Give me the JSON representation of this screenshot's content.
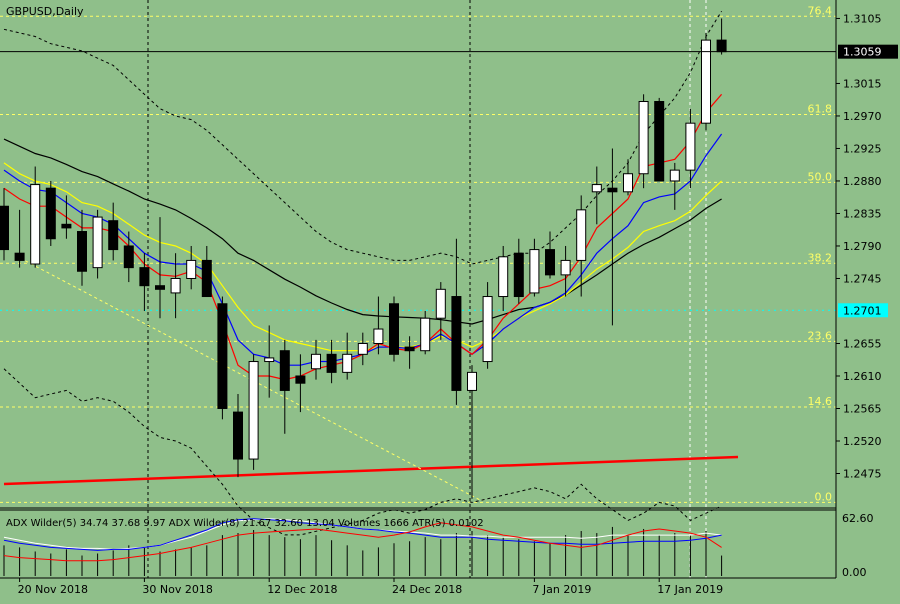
{
  "window": {
    "title": "GBPUSD,Daily"
  },
  "colors": {
    "background": "#8fbf8a",
    "bull_candle": "#ffffff",
    "bear_candle": "#000000",
    "ma_black": "#000000",
    "ma_red": "#ff0000",
    "ma_blue": "#0000ff",
    "ma_yellow": "#ffff00",
    "fib_line": "#ffff66",
    "current_price_bg": "#000000",
    "cyan_marker": "#00ffff",
    "trend_red": "#ff0000"
  },
  "price_axis": {
    "ticks": [
      "1.3105",
      "1.3015",
      "1.2970",
      "1.2925",
      "1.2880",
      "1.2835",
      "1.2790",
      "1.2745",
      "1.2655",
      "1.2610",
      "1.2565",
      "1.2520",
      "1.2475"
    ],
    "tick_values": [
      1.3105,
      1.3015,
      1.297,
      1.2925,
      1.288,
      1.2835,
      1.279,
      1.2745,
      1.2655,
      1.261,
      1.2565,
      1.252,
      1.2475
    ],
    "current_price": "1.3059",
    "current_value": 1.3059,
    "cyan_label": "1.2701",
    "cyan_value": 1.2701
  },
  "fib_levels": [
    {
      "label": "76.4",
      "value": 1.3108
    },
    {
      "label": "61.8",
      "value": 1.2972
    },
    {
      "label": "50.0",
      "value": 1.2878
    },
    {
      "label": "38.2",
      "value": 1.2766
    },
    {
      "label": "23.6",
      "value": 1.2658
    },
    {
      "label": "14.6",
      "value": 1.2567
    },
    {
      "label": "0.0",
      "value": 1.2435
    }
  ],
  "time_axis": {
    "labels": [
      "20 Nov 2018",
      "30 Nov 2018",
      "12 Dec 2018",
      "24 Dec 2018",
      "7 Jan 2019",
      "17 Jan 2019"
    ],
    "label_bars": [
      1,
      9,
      17,
      25,
      34,
      42
    ]
  },
  "indicator": {
    "header": "ADX Wilder(5) 34.74 37.68 9.97 ADX Wilder(8) 21.67 32.60 13.04 Volumes 1666 ATR(5) 0.0102",
    "scale_top": "62.60",
    "scale_bottom": "0.00"
  },
  "chart_data": {
    "type": "candlestick",
    "symbol": "GBPUSD",
    "timeframe": "Daily",
    "candles": [
      {
        "o": 1.2845,
        "h": 1.287,
        "l": 1.277,
        "c": 1.2785
      },
      {
        "o": 1.278,
        "h": 1.284,
        "l": 1.276,
        "c": 1.277
      },
      {
        "o": 1.2765,
        "h": 1.29,
        "l": 1.276,
        "c": 1.2875
      },
      {
        "o": 1.287,
        "h": 1.288,
        "l": 1.279,
        "c": 1.28
      },
      {
        "o": 1.282,
        "h": 1.286,
        "l": 1.28,
        "c": 1.2815
      },
      {
        "o": 1.281,
        "h": 1.284,
        "l": 1.2735,
        "c": 1.2755
      },
      {
        "o": 1.276,
        "h": 1.284,
        "l": 1.2745,
        "c": 1.283
      },
      {
        "o": 1.2825,
        "h": 1.285,
        "l": 1.277,
        "c": 1.2785
      },
      {
        "o": 1.279,
        "h": 1.281,
        "l": 1.274,
        "c": 1.276
      },
      {
        "o": 1.276,
        "h": 1.278,
        "l": 1.27,
        "c": 1.2735
      },
      {
        "o": 1.2735,
        "h": 1.283,
        "l": 1.269,
        "c": 1.273
      },
      {
        "o": 1.2725,
        "h": 1.278,
        "l": 1.269,
        "c": 1.2745
      },
      {
        "o": 1.2745,
        "h": 1.279,
        "l": 1.273,
        "c": 1.277
      },
      {
        "o": 1.277,
        "h": 1.279,
        "l": 1.272,
        "c": 1.272
      },
      {
        "o": 1.271,
        "h": 1.272,
        "l": 1.255,
        "c": 1.2565
      },
      {
        "o": 1.256,
        "h": 1.2585,
        "l": 1.247,
        "c": 1.2495
      },
      {
        "o": 1.2495,
        "h": 1.264,
        "l": 1.248,
        "c": 1.263
      },
      {
        "o": 1.263,
        "h": 1.268,
        "l": 1.258,
        "c": 1.2635
      },
      {
        "o": 1.2645,
        "h": 1.266,
        "l": 1.253,
        "c": 1.259
      },
      {
        "o": 1.261,
        "h": 1.264,
        "l": 1.256,
        "c": 1.26
      },
      {
        "o": 1.262,
        "h": 1.266,
        "l": 1.2605,
        "c": 1.264
      },
      {
        "o": 1.264,
        "h": 1.266,
        "l": 1.26,
        "c": 1.2615
      },
      {
        "o": 1.2615,
        "h": 1.267,
        "l": 1.2605,
        "c": 1.264
      },
      {
        "o": 1.264,
        "h": 1.267,
        "l": 1.2625,
        "c": 1.2655
      },
      {
        "o": 1.2655,
        "h": 1.272,
        "l": 1.264,
        "c": 1.2675
      },
      {
        "o": 1.271,
        "h": 1.272,
        "l": 1.263,
        "c": 1.264
      },
      {
        "o": 1.265,
        "h": 1.2665,
        "l": 1.262,
        "c": 1.2645
      },
      {
        "o": 1.2645,
        "h": 1.27,
        "l": 1.264,
        "c": 1.269
      },
      {
        "o": 1.269,
        "h": 1.274,
        "l": 1.266,
        "c": 1.273
      },
      {
        "o": 1.272,
        "h": 1.28,
        "l": 1.257,
        "c": 1.259
      },
      {
        "o": 1.259,
        "h": 1.2625,
        "l": 1.244,
        "c": 1.2615
      },
      {
        "o": 1.263,
        "h": 1.274,
        "l": 1.262,
        "c": 1.272
      },
      {
        "o": 1.272,
        "h": 1.279,
        "l": 1.27,
        "c": 1.2775
      },
      {
        "o": 1.278,
        "h": 1.28,
        "l": 1.271,
        "c": 1.272
      },
      {
        "o": 1.2725,
        "h": 1.28,
        "l": 1.272,
        "c": 1.2785
      },
      {
        "o": 1.2785,
        "h": 1.281,
        "l": 1.2745,
        "c": 1.275
      },
      {
        "o": 1.275,
        "h": 1.279,
        "l": 1.272,
        "c": 1.277
      },
      {
        "o": 1.277,
        "h": 1.286,
        "l": 1.272,
        "c": 1.284
      },
      {
        "o": 1.2865,
        "h": 1.29,
        "l": 1.282,
        "c": 1.2875
      },
      {
        "o": 1.287,
        "h": 1.2925,
        "l": 1.268,
        "c": 1.2865
      },
      {
        "o": 1.2865,
        "h": 1.291,
        "l": 1.286,
        "c": 1.289
      },
      {
        "o": 1.289,
        "h": 1.3,
        "l": 1.287,
        "c": 1.299
      },
      {
        "o": 1.299,
        "h": 1.2995,
        "l": 1.2885,
        "c": 1.288
      },
      {
        "o": 1.288,
        "h": 1.2905,
        "l": 1.284,
        "c": 1.2895
      },
      {
        "o": 1.2895,
        "h": 1.298,
        "l": 1.287,
        "c": 1.296
      },
      {
        "o": 1.296,
        "h": 1.3085,
        "l": 1.295,
        "c": 1.3075
      },
      {
        "o": 1.3075,
        "h": 1.3105,
        "l": 1.3055,
        "c": 1.3059
      }
    ],
    "moving_averages": [
      {
        "name": "ma-black",
        "values": [
          1.2938,
          1.2928,
          1.2918,
          1.2912,
          1.2903,
          1.2893,
          1.2886,
          1.2876,
          1.2866,
          1.2855,
          1.2848,
          1.284,
          1.2828,
          1.2815,
          1.28,
          1.278,
          1.277,
          1.2757,
          1.2744,
          1.2733,
          1.2721,
          1.2711,
          1.2702,
          1.2695,
          1.2693,
          1.2692,
          1.2691,
          1.269,
          1.2688,
          1.2685,
          1.2682,
          1.2688,
          1.2695,
          1.2702,
          1.2705,
          1.2712,
          1.2722,
          1.2736,
          1.275,
          1.2765,
          1.278,
          1.2792,
          1.2802,
          1.2814,
          1.2826,
          1.2842,
          1.2855
        ]
      },
      {
        "name": "ma-yellow",
        "values": [
          1.2905,
          1.289,
          1.288,
          1.2875,
          1.2865,
          1.285,
          1.2845,
          1.2835,
          1.282,
          1.2805,
          1.2795,
          1.279,
          1.278,
          1.2765,
          1.2735,
          1.2705,
          1.268,
          1.267,
          1.266,
          1.2655,
          1.265,
          1.2645,
          1.2645,
          1.2645,
          1.265,
          1.265,
          1.265,
          1.2655,
          1.2665,
          1.266,
          1.265,
          1.266,
          1.2675,
          1.269,
          1.27,
          1.271,
          1.2722,
          1.274,
          1.2758,
          1.2772,
          1.2788,
          1.281,
          1.2818,
          1.2825,
          1.2838,
          1.286,
          1.288
        ]
      },
      {
        "name": "ma-blue",
        "values": [
          1.2895,
          1.288,
          1.2868,
          1.2865,
          1.285,
          1.2835,
          1.283,
          1.282,
          1.28,
          1.278,
          1.2768,
          1.2765,
          1.2765,
          1.2755,
          1.271,
          1.266,
          1.264,
          1.2635,
          1.2625,
          1.2625,
          1.263,
          1.263,
          1.2635,
          1.264,
          1.265,
          1.265,
          1.2648,
          1.2655,
          1.2668,
          1.2655,
          1.264,
          1.2655,
          1.2675,
          1.269,
          1.2705,
          1.2712,
          1.2725,
          1.275,
          1.278,
          1.28,
          1.2818,
          1.285,
          1.2858,
          1.2862,
          1.288,
          1.2915,
          1.2945
        ]
      },
      {
        "name": "ma-red",
        "values": [
          1.287,
          1.2855,
          1.2845,
          1.2845,
          1.283,
          1.2815,
          1.2815,
          1.281,
          1.279,
          1.2765,
          1.275,
          1.2748,
          1.2755,
          1.274,
          1.2685,
          1.2625,
          1.261,
          1.261,
          1.2605,
          1.261,
          1.262,
          1.2625,
          1.263,
          1.264,
          1.2655,
          1.2648,
          1.2645,
          1.2655,
          1.2675,
          1.2655,
          1.264,
          1.266,
          1.269,
          1.271,
          1.273,
          1.2735,
          1.2745,
          1.2775,
          1.2815,
          1.2835,
          1.2855,
          1.29,
          1.2905,
          1.291,
          1.2935,
          1.2975,
          1.3
        ]
      }
    ],
    "bollinger_upper": [
      1.309,
      1.3085,
      1.308,
      1.307,
      1.3065,
      1.306,
      1.305,
      1.304,
      1.302,
      1.3,
      1.298,
      1.297,
      1.2965,
      1.295,
      1.293,
      1.291,
      1.289,
      1.287,
      1.285,
      1.283,
      1.281,
      1.2795,
      1.2785,
      1.278,
      1.2775,
      1.277,
      1.277,
      1.2775,
      1.278,
      1.2775,
      1.2765,
      1.277,
      1.2775,
      1.278,
      1.278,
      1.2795,
      1.2815,
      1.2835,
      1.286,
      1.288,
      1.2905,
      1.2945,
      1.297,
      1.2995,
      1.303,
      1.308,
      1.3115
    ],
    "bollinger_lower": [
      1.262,
      1.26,
      1.258,
      1.2585,
      1.259,
      1.2575,
      1.258,
      1.2575,
      1.256,
      1.254,
      1.2525,
      1.252,
      1.251,
      1.2485,
      1.246,
      1.243,
      1.241,
      1.24,
      1.239,
      1.239,
      1.2395,
      1.24,
      1.2405,
      1.241,
      1.242,
      1.2425,
      1.242,
      1.2425,
      1.2435,
      1.244,
      1.2435,
      1.244,
      1.2445,
      1.245,
      1.2455,
      1.245,
      1.244,
      1.246,
      1.244,
      1.2425,
      1.241,
      1.242,
      1.2435,
      1.243,
      1.241,
      1.242,
      1.243
    ],
    "price_ylim": [
      1.243,
      1.3125
    ],
    "indicator_panel": {
      "adx_white": [
        38,
        35,
        32,
        30,
        28,
        27,
        27,
        26,
        27,
        28,
        30,
        34,
        38,
        44,
        50,
        54,
        55,
        56,
        55,
        54,
        52,
        50,
        48,
        46,
        45,
        44,
        43,
        42,
        40,
        40,
        39,
        39,
        38,
        38,
        38,
        38,
        38,
        37,
        38,
        40,
        40,
        40,
        40,
        40,
        40,
        42,
        40
      ],
      "adx_blue": [
        35,
        32,
        30,
        28,
        27,
        26,
        25,
        26,
        26,
        28,
        30,
        35,
        40,
        45,
        52,
        55,
        56,
        55,
        54,
        52,
        51,
        50,
        48,
        46,
        45,
        43,
        42,
        40,
        38,
        38,
        38,
        36,
        35,
        34,
        33,
        32,
        32,
        31,
        31,
        32,
        33,
        34,
        34,
        34,
        35,
        37,
        40
      ],
      "di_red": [
        20,
        18,
        17,
        16,
        15,
        15,
        15,
        16,
        18,
        20,
        22,
        25,
        28,
        32,
        36,
        40,
        42,
        43,
        44,
        45,
        46,
        44,
        42,
        40,
        38,
        40,
        43,
        48,
        52,
        50,
        48,
        44,
        40,
        38,
        35,
        32,
        30,
        28,
        30,
        35,
        40,
        44,
        46,
        44,
        42,
        38,
        28
      ],
      "volumes": [
        30,
        28,
        24,
        22,
        26,
        20,
        22,
        25,
        30,
        28,
        24,
        26,
        28,
        30,
        40,
        42,
        45,
        40,
        38,
        36,
        40,
        35,
        30,
        25,
        28,
        32,
        34,
        38,
        36,
        42,
        44,
        40,
        38,
        36,
        34,
        32,
        40,
        44,
        42,
        48,
        40,
        46,
        40,
        42,
        40,
        44,
        20
      ],
      "ylim": [
        0,
        62.6
      ]
    }
  }
}
